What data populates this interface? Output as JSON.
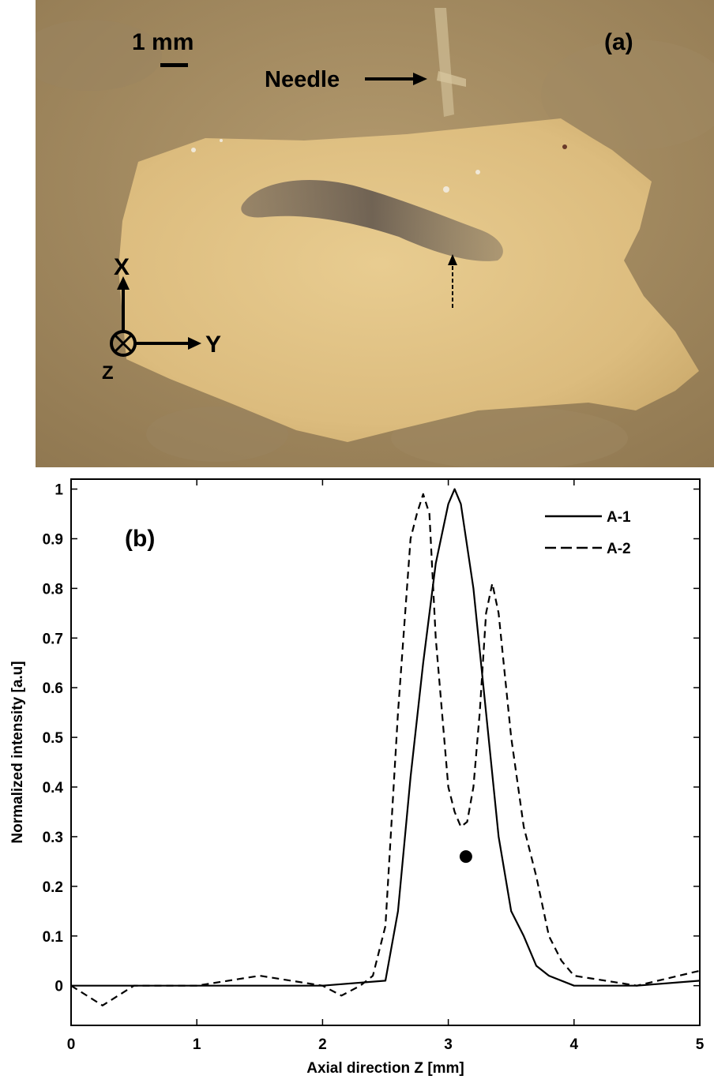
{
  "panel_a": {
    "label": "(a)",
    "scale_bar": "1 mm",
    "needle_label": "Needle",
    "axes": {
      "x": "X",
      "y": "Y",
      "z": "Z"
    }
  },
  "chart_data": {
    "type": "line",
    "panel_label": "(b)",
    "xlabel": "Axial direction Z [mm]",
    "ylabel": "Normalized intensity [a.u]",
    "xlim": [
      0,
      5
    ],
    "ylim": [
      -0.08,
      1.02
    ],
    "x_ticks": [
      0,
      1,
      2,
      3,
      4,
      5
    ],
    "y_ticks": [
      0,
      0.1,
      0.2,
      0.3,
      0.4,
      0.5,
      0.6,
      0.7,
      0.8,
      0.9,
      1
    ],
    "legend_position": "top-right",
    "grid": false,
    "marker_point": {
      "x": 3.14,
      "y": 0.26
    },
    "series": [
      {
        "name": "A-1",
        "style": "solid",
        "x": [
          0,
          0.5,
          1.0,
          1.5,
          2.0,
          2.5,
          2.6,
          2.7,
          2.8,
          2.9,
          3.0,
          3.05,
          3.1,
          3.2,
          3.3,
          3.4,
          3.5,
          3.6,
          3.7,
          3.8,
          4.0,
          4.5,
          5.0
        ],
        "y": [
          0.0,
          0.0,
          0.0,
          0.0,
          0.0,
          0.01,
          0.15,
          0.42,
          0.65,
          0.85,
          0.97,
          1.0,
          0.97,
          0.8,
          0.55,
          0.3,
          0.15,
          0.1,
          0.04,
          0.02,
          0.0,
          0.0,
          0.01
        ]
      },
      {
        "name": "A-2",
        "style": "dashed",
        "x": [
          0,
          0.25,
          0.5,
          1.0,
          1.5,
          2.0,
          2.15,
          2.3,
          2.4,
          2.5,
          2.6,
          2.7,
          2.75,
          2.8,
          2.85,
          2.9,
          3.0,
          3.05,
          3.1,
          3.15,
          3.2,
          3.25,
          3.3,
          3.35,
          3.4,
          3.5,
          3.6,
          3.7,
          3.8,
          3.9,
          4.0,
          4.5,
          5.0
        ],
        "y": [
          0.0,
          -0.04,
          0.0,
          0.0,
          0.02,
          0.0,
          -0.02,
          0.0,
          0.02,
          0.12,
          0.55,
          0.9,
          0.95,
          0.99,
          0.95,
          0.7,
          0.4,
          0.35,
          0.32,
          0.33,
          0.4,
          0.55,
          0.75,
          0.81,
          0.75,
          0.5,
          0.32,
          0.22,
          0.1,
          0.05,
          0.02,
          0.0,
          0.03
        ]
      }
    ]
  }
}
